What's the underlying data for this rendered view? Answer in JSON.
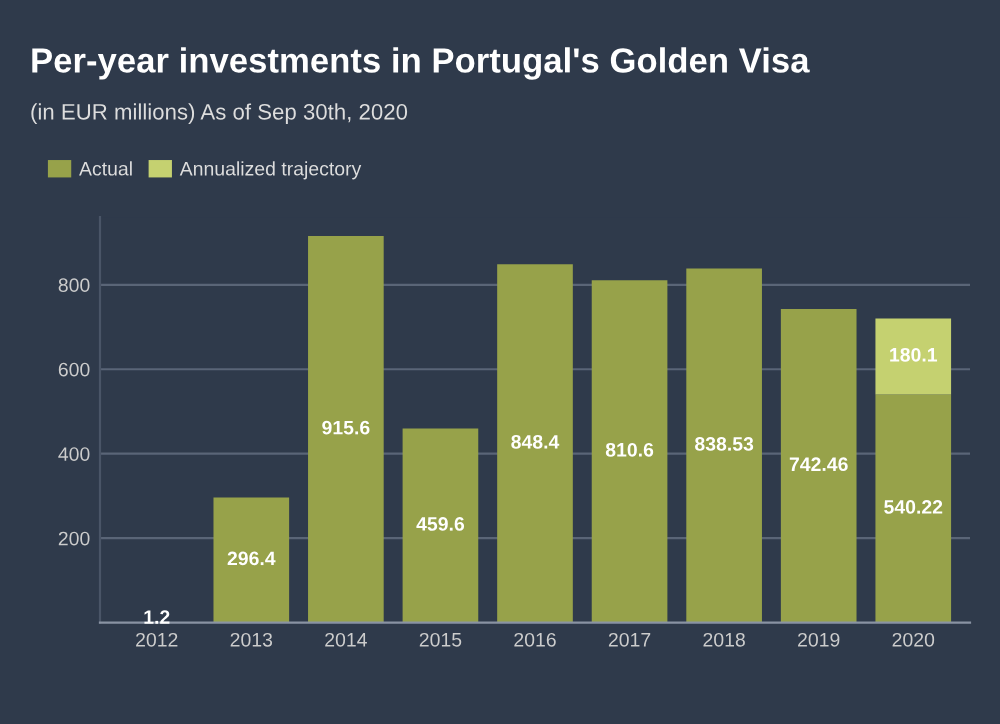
{
  "chart_data": {
    "type": "bar",
    "title": "Per-year investments in Portugal's Golden Visa",
    "subtitle": "(in EUR millions) As of Sep 30th, 2020",
    "categories": [
      "2012",
      "2013",
      "2014",
      "2015",
      "2016",
      "2017",
      "2018",
      "2019",
      "2020"
    ],
    "stacked": true,
    "series": [
      {
        "name": "Actual",
        "color": "#97a24a",
        "values": [
          1.2,
          296.4,
          915.6,
          459.6,
          848.4,
          810.6,
          838.53,
          742.46,
          540.22
        ],
        "value_labels": [
          "1.2",
          "296.4",
          "915.6",
          "459.6",
          "848.4",
          "810.6",
          "838.53",
          "742.46",
          "540.22"
        ]
      },
      {
        "name": "Annualized trajectory",
        "color": "#c5d170",
        "values": [
          null,
          null,
          null,
          null,
          null,
          null,
          null,
          null,
          180.1
        ],
        "value_labels": [
          null,
          null,
          null,
          null,
          null,
          null,
          null,
          null,
          "180.1"
        ]
      }
    ],
    "ylim": [
      0,
      960
    ],
    "yticks": [
      200,
      400,
      600,
      800
    ],
    "grid": "y",
    "legend": "top left"
  }
}
